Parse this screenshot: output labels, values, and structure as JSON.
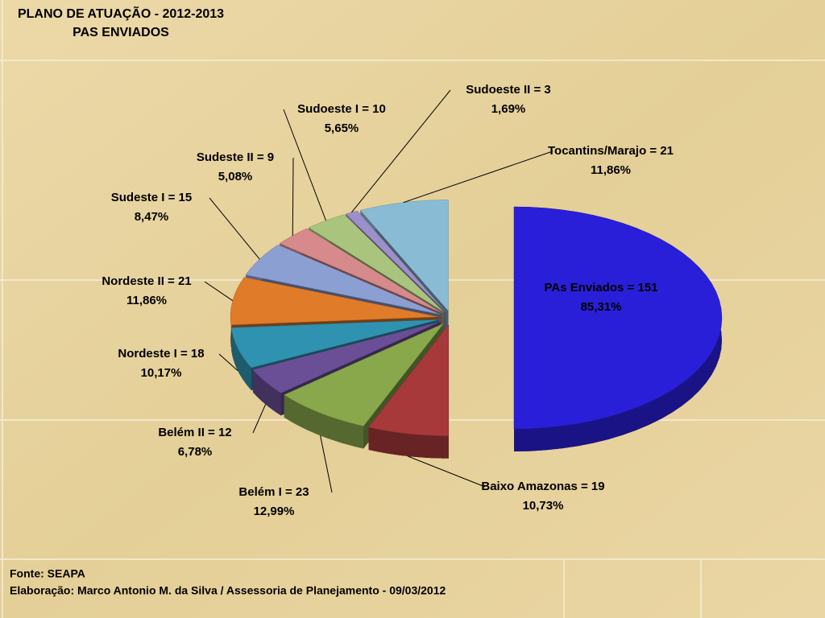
{
  "chart_data": {
    "type": "pie3d",
    "title": "PLANO DE ATUAÇÃO - 2012-2013",
    "subtitle": "PAS ENVIADOS",
    "categories": [
      "PAs Enviados = 151",
      "Baixo Amazonas = 19",
      "Belém I = 23",
      "Belém II = 12",
      "Nordeste I = 18",
      "Nordeste II = 21",
      "Sudeste I = 15",
      "Sudeste II = 9",
      "Sudoeste I = 10",
      "Sudoeste II = 3",
      "Tocantins/Marajo = 21"
    ],
    "values": [
      151,
      19,
      23,
      12,
      18,
      21,
      15,
      9,
      10,
      3,
      21
    ],
    "percent_labels": [
      "85,31%",
      "10,73%",
      "12,99%",
      "6,78%",
      "10,17%",
      "11,86%",
      "8,47%",
      "5,08%",
      "5,65%",
      "1,69%",
      "11,86%"
    ],
    "colors": [
      "#2a1fd8",
      "#a8393b",
      "#89a84b",
      "#6b4f96",
      "#2f92b0",
      "#e07b2a",
      "#8c9fd2",
      "#d68a8c",
      "#a9c47c",
      "#9d8fc9",
      "#89bcd4"
    ],
    "footer": [
      "Fonte: SEAPA",
      "Elaboração:  Marco Antonio M. da Silva / Assessoria de Planejamento  - 09/03/2012"
    ]
  }
}
